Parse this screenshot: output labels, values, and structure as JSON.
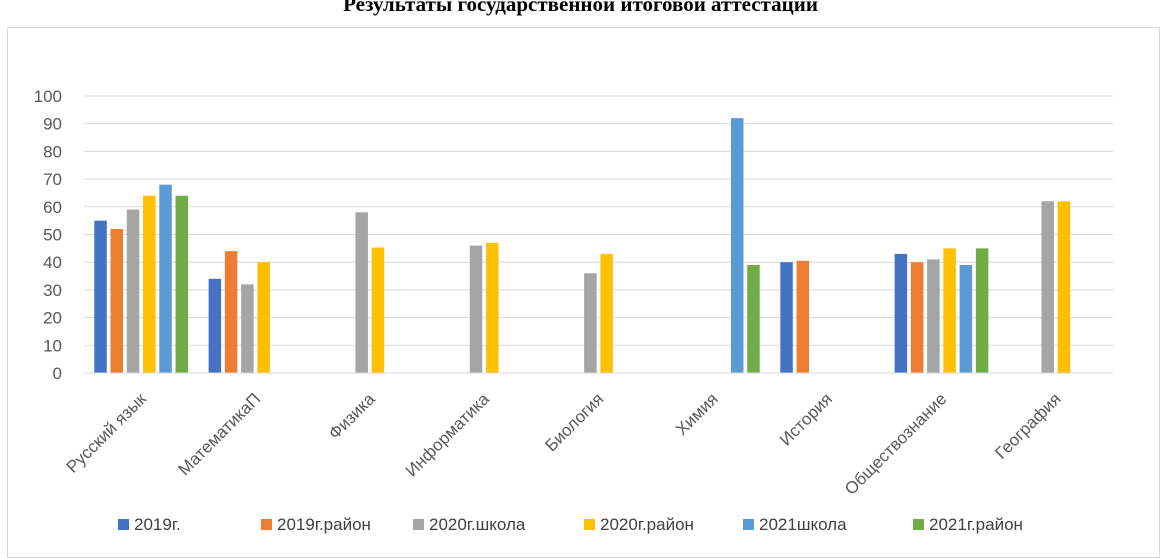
{
  "page": {
    "title": "Результаты государственной итоговой аттестации"
  },
  "chart_data": {
    "type": "bar",
    "title": "Результаты государственной итоговой аттестации",
    "xlabel": "",
    "ylabel": "",
    "ylim": [
      0,
      100
    ],
    "yticks": [
      0,
      10,
      20,
      30,
      40,
      50,
      60,
      70,
      80,
      90,
      100
    ],
    "grid": true,
    "legend_position": "bottom",
    "categories": [
      "Русский язык",
      "МатематикаП",
      "Физика",
      "Информатика",
      "Биология",
      "Химия",
      "История",
      "Обществознание",
      "География"
    ],
    "series": [
      {
        "name": "2019г.",
        "color": "#4472c4",
        "values": [
          55,
          34,
          null,
          null,
          null,
          null,
          40,
          43,
          null
        ]
      },
      {
        "name": "2019г.район",
        "color": "#ed7d31",
        "values": [
          52,
          44,
          null,
          null,
          null,
          null,
          40.5,
          40,
          null
        ]
      },
      {
        "name": "2020г.школа",
        "color": "#a5a5a5",
        "values": [
          59,
          32,
          58,
          46,
          36,
          null,
          null,
          41,
          62
        ]
      },
      {
        "name": "2020г.район",
        "color": "#ffc000",
        "values": [
          64,
          40,
          45.3,
          47,
          43,
          null,
          null,
          45,
          62
        ]
      },
      {
        "name": "2021школа",
        "color": "#5b9bd5",
        "values": [
          68,
          null,
          null,
          null,
          null,
          92,
          null,
          39,
          null
        ]
      },
      {
        "name": "2021г.район",
        "color": "#70ad47",
        "values": [
          64,
          null,
          null,
          null,
          null,
          39,
          null,
          45,
          null
        ]
      }
    ]
  }
}
